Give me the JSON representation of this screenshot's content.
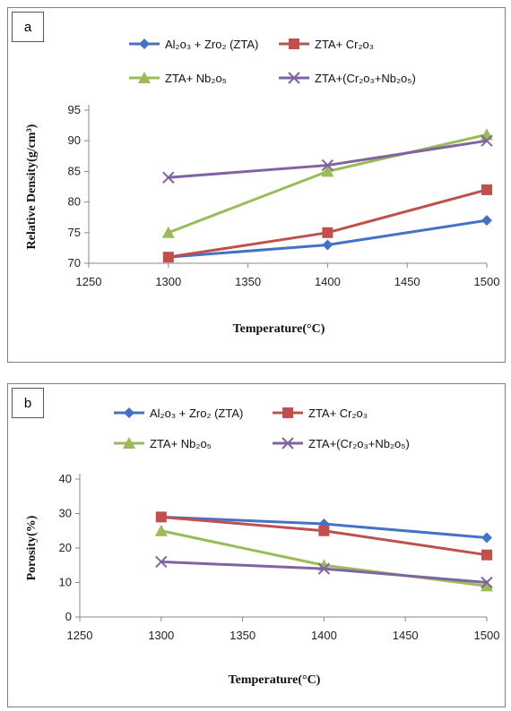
{
  "chart_data": [
    {
      "type": "line",
      "panel_label": "a",
      "title": "",
      "xlabel": "Temperature(°C)",
      "ylabel": "Relative Density(g/cm³)",
      "xlim": [
        1250,
        1500
      ],
      "ylim": [
        70,
        95
      ],
      "xticks": [
        1250,
        1300,
        1350,
        1400,
        1450,
        1500
      ],
      "yticks": [
        70,
        75,
        80,
        85,
        90,
        95
      ],
      "legend": "top",
      "grid": false,
      "x": [
        1300,
        1400,
        1500
      ],
      "series": [
        {
          "name": "Al₂o₃ + Zro₂ (ZTA)",
          "values": [
            71,
            73,
            77
          ],
          "color": "#4472C4",
          "marker": "diamond"
        },
        {
          "name": "ZTA+ Cr₂o₃",
          "values": [
            71,
            75,
            82
          ],
          "color": "#C0504D",
          "marker": "square"
        },
        {
          "name": "ZTA+ Nb₂o₅",
          "values": [
            75,
            85,
            91
          ],
          "color": "#9BBB59",
          "marker": "triangle"
        },
        {
          "name": "ZTA+(Cr₂o₃+Nb₂o₅)",
          "values": [
            84,
            86,
            90
          ],
          "color": "#8064A2",
          "marker": "x"
        }
      ]
    },
    {
      "type": "line",
      "panel_label": "b",
      "title": "",
      "xlabel": "Temperature(°C)",
      "ylabel": "Porosity(%)",
      "xlim": [
        1250,
        1500
      ],
      "ylim": [
        0,
        40
      ],
      "xticks": [
        1250,
        1300,
        1350,
        1400,
        1450,
        1500
      ],
      "yticks": [
        0,
        10,
        20,
        30,
        40
      ],
      "legend": "top",
      "grid": false,
      "x": [
        1300,
        1400,
        1500
      ],
      "series": [
        {
          "name": "Al₂o₃ + Zro₂ (ZTA)",
          "values": [
            29,
            27,
            23
          ],
          "color": "#4472C4",
          "marker": "diamond"
        },
        {
          "name": "ZTA+ Cr₂o₃",
          "values": [
            29,
            25,
            18
          ],
          "color": "#C0504D",
          "marker": "square"
        },
        {
          "name": "ZTA+ Nb₂o₅",
          "values": [
            25,
            15,
            9
          ],
          "color": "#9BBB59",
          "marker": "triangle"
        },
        {
          "name": "ZTA+(Cr₂o₃+Nb₂o₅)",
          "values": [
            16,
            14,
            10
          ],
          "color": "#8064A2",
          "marker": "x"
        }
      ]
    }
  ]
}
